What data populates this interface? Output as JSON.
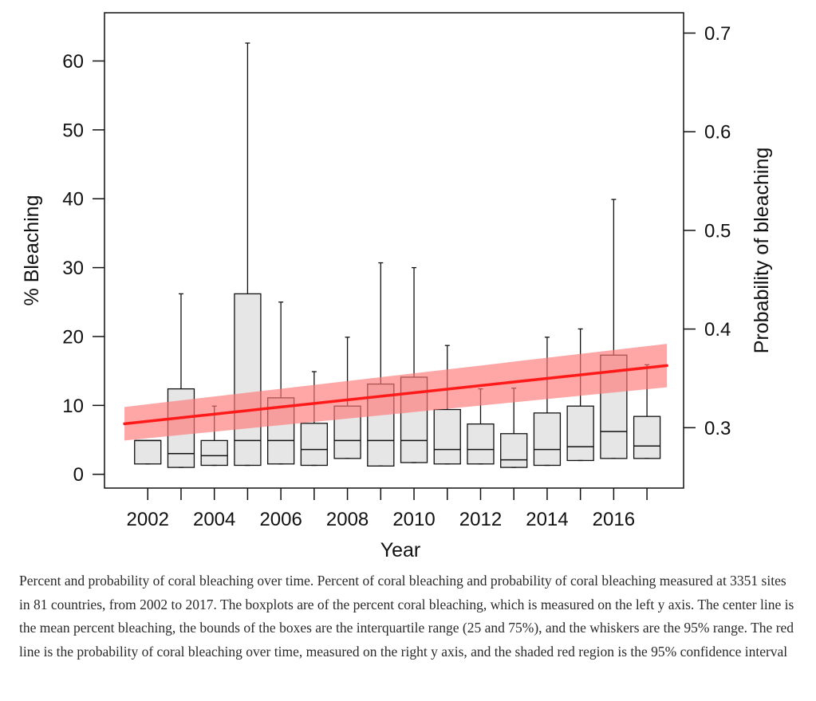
{
  "chart_data": {
    "type": "box",
    "xlabel": "Year",
    "ylabel": "% Bleaching",
    "y2label": "Probability of bleaching",
    "ylim": [
      -2,
      67
    ],
    "y2lim": [
      0.2388,
      0.7206
    ],
    "xlim": [
      2000.7,
      2018.1
    ],
    "yticks": [
      0,
      10,
      20,
      30,
      40,
      50,
      60
    ],
    "y2ticks": [
      0.3,
      0.4,
      0.5,
      0.6,
      0.7
    ],
    "y2tick_labels": [
      "0.3",
      "0.4",
      "0.5",
      "0.6",
      "0.7"
    ],
    "xticks_minor": [
      2002,
      2003,
      2004,
      2005,
      2006,
      2007,
      2008,
      2009,
      2010,
      2011,
      2012,
      2013,
      2014,
      2015,
      2016,
      2017
    ],
    "xtick_labels": [
      "2002",
      "2004",
      "2006",
      "2008",
      "2010",
      "2012",
      "2014",
      "2016"
    ],
    "box_series": {
      "name": "% Bleaching",
      "years": [
        2002,
        2003,
        2004,
        2005,
        2006,
        2007,
        2008,
        2009,
        2010,
        2011,
        2012,
        2013,
        2014,
        2015,
        2016,
        2017
      ],
      "whisker_low": [
        1.5,
        1.0,
        1.3,
        1.3,
        1.5,
        1.3,
        2.3,
        1.2,
        1.7,
        1.5,
        1.5,
        1.0,
        1.3,
        2.0,
        2.3,
        2.3
      ],
      "q1": [
        1.5,
        1.0,
        1.3,
        1.3,
        1.5,
        1.3,
        2.3,
        1.2,
        1.7,
        1.5,
        1.5,
        1.0,
        1.3,
        2.0,
        2.3,
        2.3
      ],
      "center": [
        4.9,
        3.0,
        2.7,
        4.9,
        4.9,
        3.6,
        4.9,
        4.9,
        4.9,
        3.6,
        3.6,
        2.1,
        3.6,
        4.0,
        6.2,
        4.1
      ],
      "q3": [
        4.9,
        12.4,
        4.9,
        26.2,
        11.1,
        7.4,
        9.9,
        13.1,
        14.1,
        9.4,
        7.3,
        5.9,
        8.9,
        9.9,
        17.3,
        8.4
      ],
      "whisker_high": [
        4.9,
        26.2,
        9.9,
        62.6,
        25.0,
        14.9,
        19.9,
        30.7,
        30.0,
        18.7,
        12.4,
        12.5,
        19.9,
        21.1,
        39.9,
        15.9
      ]
    },
    "trend_series": {
      "name": "Probability of bleaching",
      "axis": "right",
      "x": [
        2001.3,
        2017.6
      ],
      "values": [
        0.304,
        0.363
      ],
      "ci_lower": [
        0.287,
        0.341
      ],
      "ci_upper": [
        0.321,
        0.385
      ]
    },
    "colors": {
      "box_fill": "#e6e6e6",
      "box_stroke": "#111111",
      "trend_line": "#ff1a1a",
      "ci_band": "#ff7777"
    }
  },
  "caption": "Percent and probability of coral bleaching over time. Percent of coral bleaching and probability of coral bleaching measured at 3351 sites in 81 countries, from 2002 to 2017. The boxplots are of the percent coral bleaching, which is measured on the left y axis. The center line is the mean percent bleaching, the bounds of the boxes are the interquartile range (25 and 75%), and the whiskers are the 95% range. The red line is the probability of coral bleaching over time, measured on the right y axis, and the shaded red region is the 95% confidence interval"
}
